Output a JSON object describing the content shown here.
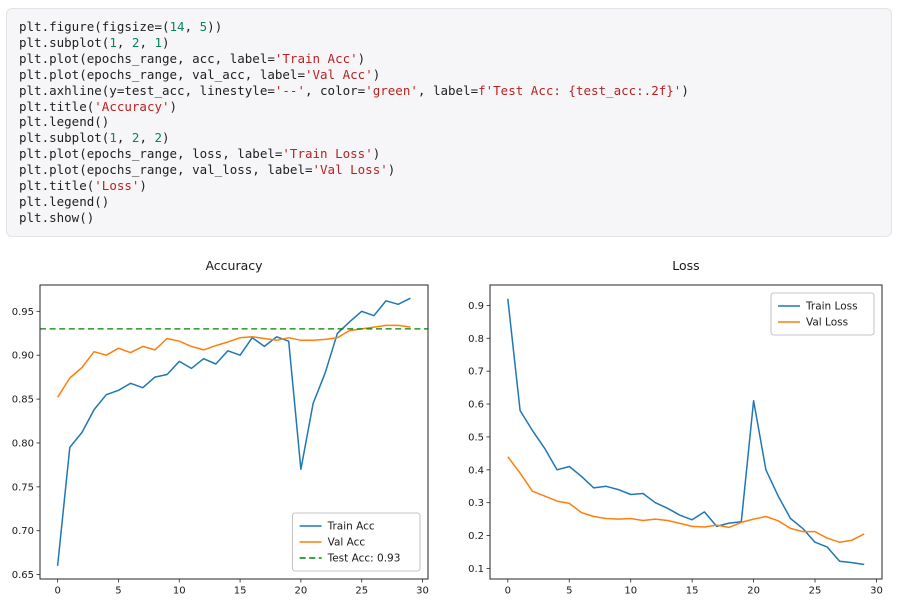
{
  "code_cell": {
    "language": "python",
    "lines": [
      [
        {
          "t": "p",
          "v": "plt.figure(figsize=("
        },
        {
          "t": "n",
          "v": "14"
        },
        {
          "t": "p",
          "v": ", "
        },
        {
          "t": "n",
          "v": "5"
        },
        {
          "t": "p",
          "v": "))"
        }
      ],
      [
        {
          "t": "p",
          "v": "plt.subplot("
        },
        {
          "t": "n",
          "v": "1"
        },
        {
          "t": "p",
          "v": ", "
        },
        {
          "t": "n",
          "v": "2"
        },
        {
          "t": "p",
          "v": ", "
        },
        {
          "t": "n",
          "v": "1"
        },
        {
          "t": "p",
          "v": ")"
        }
      ],
      [
        {
          "t": "p",
          "v": "plt.plot(epochs_range, acc, label="
        },
        {
          "t": "s",
          "v": "'Train Acc'"
        },
        {
          "t": "p",
          "v": ")"
        }
      ],
      [
        {
          "t": "p",
          "v": "plt.plot(epochs_range, val_acc, label="
        },
        {
          "t": "s",
          "v": "'Val Acc'"
        },
        {
          "t": "p",
          "v": ")"
        }
      ],
      [
        {
          "t": "p",
          "v": "plt.axhline(y=test_acc, linestyle="
        },
        {
          "t": "s",
          "v": "'--'"
        },
        {
          "t": "p",
          "v": ", color="
        },
        {
          "t": "s",
          "v": "'green'"
        },
        {
          "t": "p",
          "v": ", label="
        },
        {
          "t": "s",
          "v": "f'Test Acc: {test_acc:.2f}'"
        },
        {
          "t": "p",
          "v": ")"
        }
      ],
      [
        {
          "t": "p",
          "v": "plt.title("
        },
        {
          "t": "s",
          "v": "'Accuracy'"
        },
        {
          "t": "p",
          "v": ")"
        }
      ],
      [
        {
          "t": "p",
          "v": "plt.legend()"
        }
      ],
      [
        {
          "t": "p",
          "v": "plt.subplot("
        },
        {
          "t": "n",
          "v": "1"
        },
        {
          "t": "p",
          "v": ", "
        },
        {
          "t": "n",
          "v": "2"
        },
        {
          "t": "p",
          "v": ", "
        },
        {
          "t": "n",
          "v": "2"
        },
        {
          "t": "p",
          "v": ")"
        }
      ],
      [
        {
          "t": "p",
          "v": "plt.plot(epochs_range, loss, label="
        },
        {
          "t": "s",
          "v": "'Train Loss'"
        },
        {
          "t": "p",
          "v": ")"
        }
      ],
      [
        {
          "t": "p",
          "v": "plt.plot(epochs_range, val_loss, label="
        },
        {
          "t": "s",
          "v": "'Val Loss'"
        },
        {
          "t": "p",
          "v": ")"
        }
      ],
      [
        {
          "t": "p",
          "v": "plt.title("
        },
        {
          "t": "s",
          "v": "'Loss'"
        },
        {
          "t": "p",
          "v": ")"
        }
      ],
      [
        {
          "t": "p",
          "v": "plt.legend()"
        }
      ],
      [
        {
          "t": "p",
          "v": "plt.show()"
        }
      ]
    ]
  },
  "chart_data": [
    {
      "type": "line",
      "title": "Accuracy",
      "xlabel": "",
      "ylabel": "",
      "xlim": [
        -1.45,
        30.45
      ],
      "ylim": [
        0.645,
        0.98
      ],
      "grid": false,
      "legend_loc": "lower right",
      "xticks": [
        {
          "v": 0,
          "l": "0"
        },
        {
          "v": 5,
          "l": "5"
        },
        {
          "v": 10,
          "l": "10"
        },
        {
          "v": 15,
          "l": "15"
        },
        {
          "v": 20,
          "l": "20"
        },
        {
          "v": 25,
          "l": "25"
        },
        {
          "v": 30,
          "l": "30"
        }
      ],
      "yticks": [
        {
          "v": 0.65,
          "l": "0.65"
        },
        {
          "v": 0.7,
          "l": "0.70"
        },
        {
          "v": 0.75,
          "l": "0.75"
        },
        {
          "v": 0.8,
          "l": "0.80"
        },
        {
          "v": 0.85,
          "l": "0.85"
        },
        {
          "v": 0.9,
          "l": "0.90"
        },
        {
          "v": 0.95,
          "l": "0.95"
        }
      ],
      "x": [
        0,
        1,
        2,
        3,
        4,
        5,
        6,
        7,
        8,
        9,
        10,
        11,
        12,
        13,
        14,
        15,
        16,
        17,
        18,
        19,
        20,
        21,
        22,
        23,
        24,
        25,
        26,
        27,
        28,
        29
      ],
      "series": [
        {
          "name": "Train Acc",
          "color": "#1f77b4",
          "values": [
            0.66,
            0.795,
            0.812,
            0.838,
            0.855,
            0.86,
            0.868,
            0.863,
            0.875,
            0.878,
            0.893,
            0.885,
            0.896,
            0.89,
            0.905,
            0.9,
            0.92,
            0.91,
            0.921,
            0.916,
            0.77,
            0.845,
            0.88,
            0.925,
            0.938,
            0.95,
            0.945,
            0.962,
            0.958,
            0.965
          ]
        },
        {
          "name": "Val Acc",
          "color": "#ff7f0e",
          "values": [
            0.852,
            0.874,
            0.886,
            0.904,
            0.9,
            0.908,
            0.903,
            0.91,
            0.906,
            0.919,
            0.916,
            0.91,
            0.906,
            0.911,
            0.915,
            0.92,
            0.921,
            0.919,
            0.917,
            0.92,
            0.917,
            0.917,
            0.918,
            0.92,
            0.928,
            0.93,
            0.932,
            0.934,
            0.934,
            0.932
          ]
        }
      ],
      "ref_line": {
        "y": 0.93,
        "label": "Test Acc: 0.93",
        "color": "#008000",
        "dashed": true
      }
    },
    {
      "type": "line",
      "title": "Loss",
      "xlabel": "",
      "ylabel": "",
      "xlim": [
        -1.45,
        30.45
      ],
      "ylim": [
        0.068,
        0.962
      ],
      "grid": false,
      "legend_loc": "upper right",
      "xticks": [
        {
          "v": 0,
          "l": "0"
        },
        {
          "v": 5,
          "l": "5"
        },
        {
          "v": 10,
          "l": "10"
        },
        {
          "v": 15,
          "l": "15"
        },
        {
          "v": 20,
          "l": "20"
        },
        {
          "v": 25,
          "l": "25"
        },
        {
          "v": 30,
          "l": "30"
        }
      ],
      "yticks": [
        {
          "v": 0.1,
          "l": "0.1"
        },
        {
          "v": 0.2,
          "l": "0.2"
        },
        {
          "v": 0.3,
          "l": "0.3"
        },
        {
          "v": 0.4,
          "l": "0.4"
        },
        {
          "v": 0.5,
          "l": "0.5"
        },
        {
          "v": 0.6,
          "l": "0.6"
        },
        {
          "v": 0.7,
          "l": "0.7"
        },
        {
          "v": 0.8,
          "l": "0.8"
        },
        {
          "v": 0.9,
          "l": "0.9"
        }
      ],
      "x": [
        0,
        1,
        2,
        3,
        4,
        5,
        6,
        7,
        8,
        9,
        10,
        11,
        12,
        13,
        14,
        15,
        16,
        17,
        18,
        19,
        20,
        21,
        22,
        23,
        24,
        25,
        26,
        27,
        28,
        29
      ],
      "series": [
        {
          "name": "Train Loss",
          "color": "#1f77b4",
          "values": [
            0.92,
            0.58,
            0.52,
            0.465,
            0.4,
            0.41,
            0.38,
            0.345,
            0.35,
            0.34,
            0.325,
            0.328,
            0.3,
            0.283,
            0.262,
            0.248,
            0.272,
            0.228,
            0.238,
            0.242,
            0.61,
            0.4,
            0.32,
            0.252,
            0.222,
            0.18,
            0.165,
            0.122,
            0.118,
            0.112
          ]
        },
        {
          "name": "Val Loss",
          "color": "#ff7f0e",
          "values": [
            0.44,
            0.39,
            0.335,
            0.32,
            0.305,
            0.298,
            0.27,
            0.258,
            0.252,
            0.25,
            0.252,
            0.246,
            0.25,
            0.246,
            0.237,
            0.228,
            0.226,
            0.232,
            0.225,
            0.24,
            0.25,
            0.258,
            0.245,
            0.222,
            0.212,
            0.212,
            0.192,
            0.18,
            0.186,
            0.205
          ]
        }
      ]
    }
  ]
}
